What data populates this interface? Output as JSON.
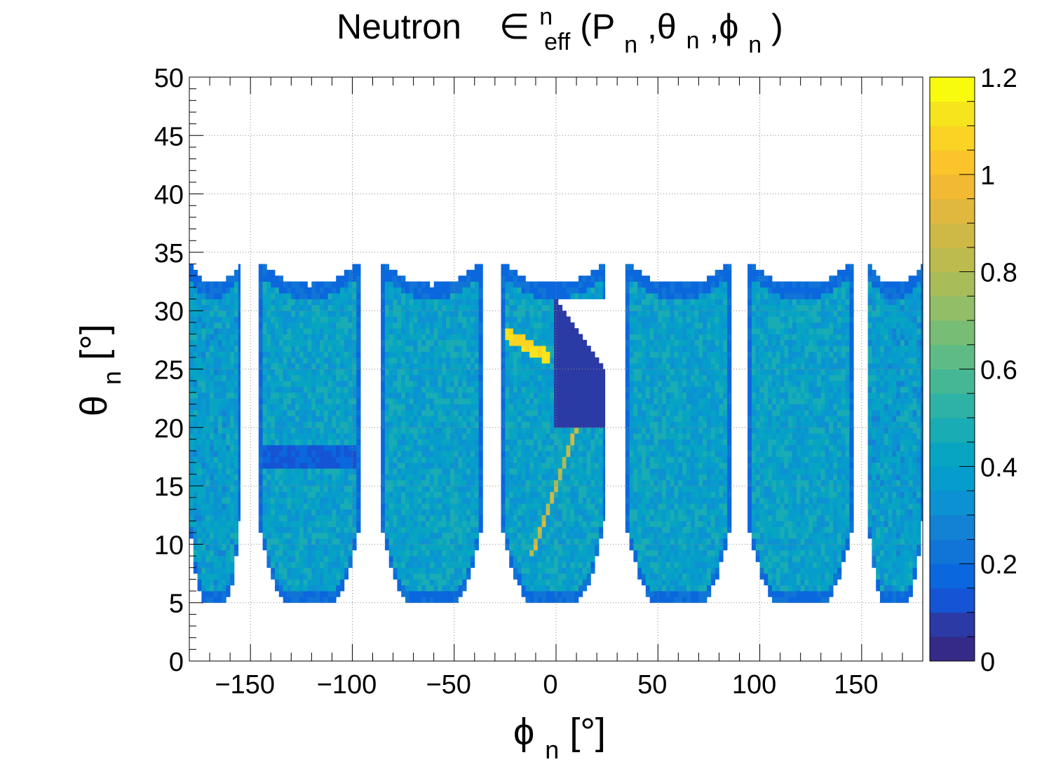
{
  "chart_data": {
    "type": "heatmap",
    "title": {
      "prefix": "Neutron",
      "symbol": "∈",
      "sup": "n",
      "sub": "eff",
      "open": "(P",
      "sub_p": "n",
      "sep1": ",θ",
      "sub_theta": "n",
      "sep2": ",ϕ",
      "sub_phi": "n",
      "close": ")"
    },
    "xlabel": {
      "symbol": "ϕ",
      "sub": "n",
      "unit": " [°]"
    },
    "ylabel": {
      "symbol": "θ",
      "sub": "n",
      "unit": " [°]"
    },
    "xlim": [
      -180,
      180
    ],
    "ylim": [
      0,
      50
    ],
    "zlim": [
      0,
      1.2
    ],
    "x_ticks": [
      -150,
      -100,
      -50,
      0,
      50,
      100,
      150
    ],
    "x_tick_labels": [
      "−150",
      "−100",
      "−50",
      "0",
      "50",
      "100",
      "150"
    ],
    "y_ticks": [
      0,
      5,
      10,
      15,
      20,
      25,
      30,
      35,
      40,
      45,
      50
    ],
    "y_tick_labels": [
      "0",
      "5",
      "10",
      "15",
      "20",
      "25",
      "30",
      "35",
      "40",
      "45",
      "50"
    ],
    "z_ticks": [
      0,
      0.2,
      0.4,
      0.6,
      0.8,
      1,
      1.2
    ],
    "z_tick_labels": [
      "0",
      "0.2",
      "0.4",
      "0.6",
      "0.8",
      "1",
      "1.2"
    ],
    "grid": true,
    "colorbar": "right",
    "palette": [
      "#352a87",
      "#2b3aa4",
      "#1554d4",
      "#0b67dd",
      "#1075d6",
      "#1382d4",
      "#0c92d2",
      "#069ccc",
      "#07a5c1",
      "#19acb4",
      "#2fb2a6",
      "#46b795",
      "#5fbb85",
      "#78bd75",
      "#91be67",
      "#a8bd5a",
      "#bdbb4e",
      "#cfb946",
      "#e0b83d",
      "#f1ba32",
      "#fbc42b",
      "#fad325",
      "#f6e41c",
      "#f9fb0e"
    ],
    "sectors": [
      {
        "phi_min": -180,
        "phi_max": -155,
        "theta_min": 5,
        "theta_top_edge": 32,
        "theta_top_corner": 34,
        "typical_eff": 0.38
      },
      {
        "phi_min": -146,
        "phi_max": -96,
        "theta_min": 5,
        "theta_top_edge": 32,
        "theta_top_corner": 34,
        "typical_eff": 0.4
      },
      {
        "phi_min": -86,
        "phi_max": -36,
        "theta_min": 5,
        "theta_top_edge": 32,
        "theta_top_corner": 34,
        "typical_eff": 0.4
      },
      {
        "phi_min": -27,
        "phi_max": 24,
        "theta_min": 5,
        "theta_top_edge": 32,
        "theta_top_corner": 34,
        "typical_eff": 0.4
      },
      {
        "phi_min": 34,
        "phi_max": 86,
        "theta_min": 5,
        "theta_top_edge": 32,
        "theta_top_corner": 34,
        "typical_eff": 0.4
      },
      {
        "phi_min": 94,
        "phi_max": 146,
        "theta_min": 5,
        "theta_top_edge": 32,
        "theta_top_corner": 34,
        "typical_eff": 0.4
      },
      {
        "phi_min": 153,
        "phi_max": 180,
        "theta_min": 5,
        "theta_top_edge": 32,
        "theta_top_corner": 34,
        "typical_eff": 0.38
      }
    ],
    "features": [
      {
        "type": "band",
        "phi_range": [
          -144,
          -98
        ],
        "theta_center": 17.5,
        "eff": 0.12
      },
      {
        "type": "arc",
        "phi_range": [
          -25,
          -3
        ],
        "theta_start": 28,
        "theta_end": 26,
        "eff": 1.1
      },
      {
        "type": "streak",
        "phi_start": -12,
        "theta_start": 9,
        "phi_end": 10,
        "theta_end": 20,
        "eff": 0.85
      },
      {
        "type": "low_region",
        "phi_range": [
          0,
          24
        ],
        "theta_range": [
          20,
          31
        ],
        "eff": 0.05
      }
    ]
  }
}
